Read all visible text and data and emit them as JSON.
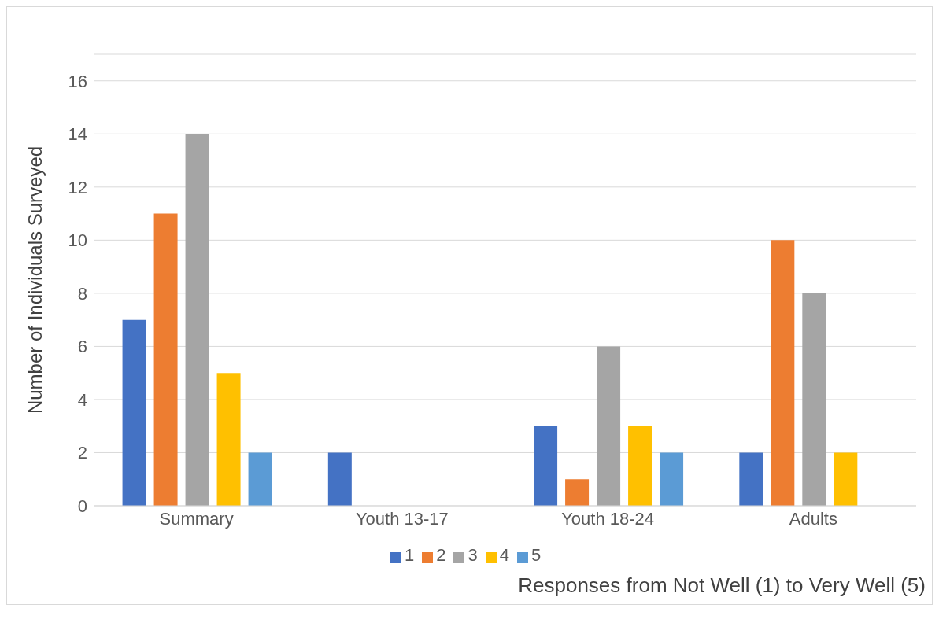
{
  "chart_data": {
    "type": "bar",
    "xlabel": "Responses from Not Well (1) to Very Well (5)",
    "ylabel": "Number of Individuals Surveyed",
    "categories": [
      "Summary",
      "Youth 13-17",
      "Youth 18-24",
      "Adults"
    ],
    "series": [
      {
        "name": "1",
        "color": "#4472c4",
        "values": [
          7,
          2,
          3,
          2
        ]
      },
      {
        "name": "2",
        "color": "#ed7d31",
        "values": [
          11,
          0,
          1,
          10
        ]
      },
      {
        "name": "3",
        "color": "#a5a5a5",
        "values": [
          14,
          0,
          6,
          8
        ]
      },
      {
        "name": "4",
        "color": "#ffc000",
        "values": [
          5,
          0,
          3,
          2
        ]
      },
      {
        "name": "5",
        "color": "#5b9bd5",
        "values": [
          2,
          0,
          2,
          0
        ]
      }
    ],
    "ylim": [
      0,
      17
    ],
    "yticks": [
      0,
      2,
      4,
      6,
      8,
      10,
      12,
      14,
      16
    ],
    "grid": "y",
    "legend": "bottom"
  }
}
